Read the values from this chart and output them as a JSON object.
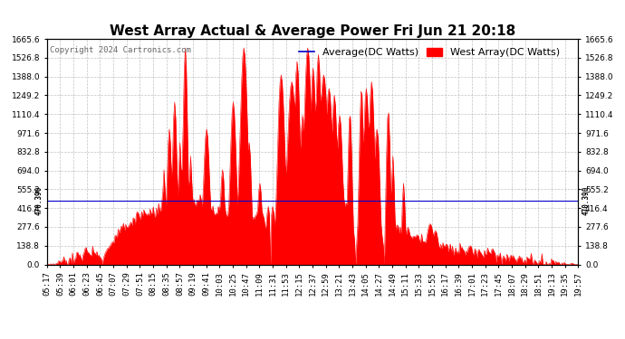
{
  "title": "West Array Actual & Average Power Fri Jun 21 20:18",
  "copyright": "Copyright 2024 Cartronics.com",
  "legend_avg": "Average(DC Watts)",
  "legend_west": "West Array(DC Watts)",
  "avg_value": 470.39,
  "avg_label": "470.390",
  "y_min": 0.0,
  "y_max": 1665.6,
  "y_ticks": [
    0.0,
    138.8,
    277.6,
    416.4,
    555.2,
    694.0,
    832.8,
    971.6,
    1110.4,
    1249.2,
    1388.0,
    1526.8,
    1665.6
  ],
  "x_labels": [
    "05:17",
    "05:39",
    "06:01",
    "06:23",
    "06:45",
    "07:07",
    "07:29",
    "07:51",
    "08:15",
    "08:35",
    "08:57",
    "09:19",
    "09:41",
    "10:03",
    "10:25",
    "10:47",
    "11:09",
    "11:31",
    "11:53",
    "12:15",
    "12:37",
    "12:59",
    "13:21",
    "13:43",
    "14:05",
    "14:27",
    "14:49",
    "15:11",
    "15:33",
    "15:55",
    "16:17",
    "16:39",
    "17:01",
    "17:23",
    "17:45",
    "18:07",
    "18:29",
    "18:51",
    "19:13",
    "19:35",
    "19:57"
  ],
  "background_color": "#ffffff",
  "grid_color": "#999999",
  "fill_color": "#ff0000",
  "line_color": "#ff0000",
  "avg_line_color": "#0000cc",
  "title_fontsize": 11,
  "tick_fontsize": 6.5,
  "copyright_fontsize": 6.5,
  "legend_fontsize": 8
}
